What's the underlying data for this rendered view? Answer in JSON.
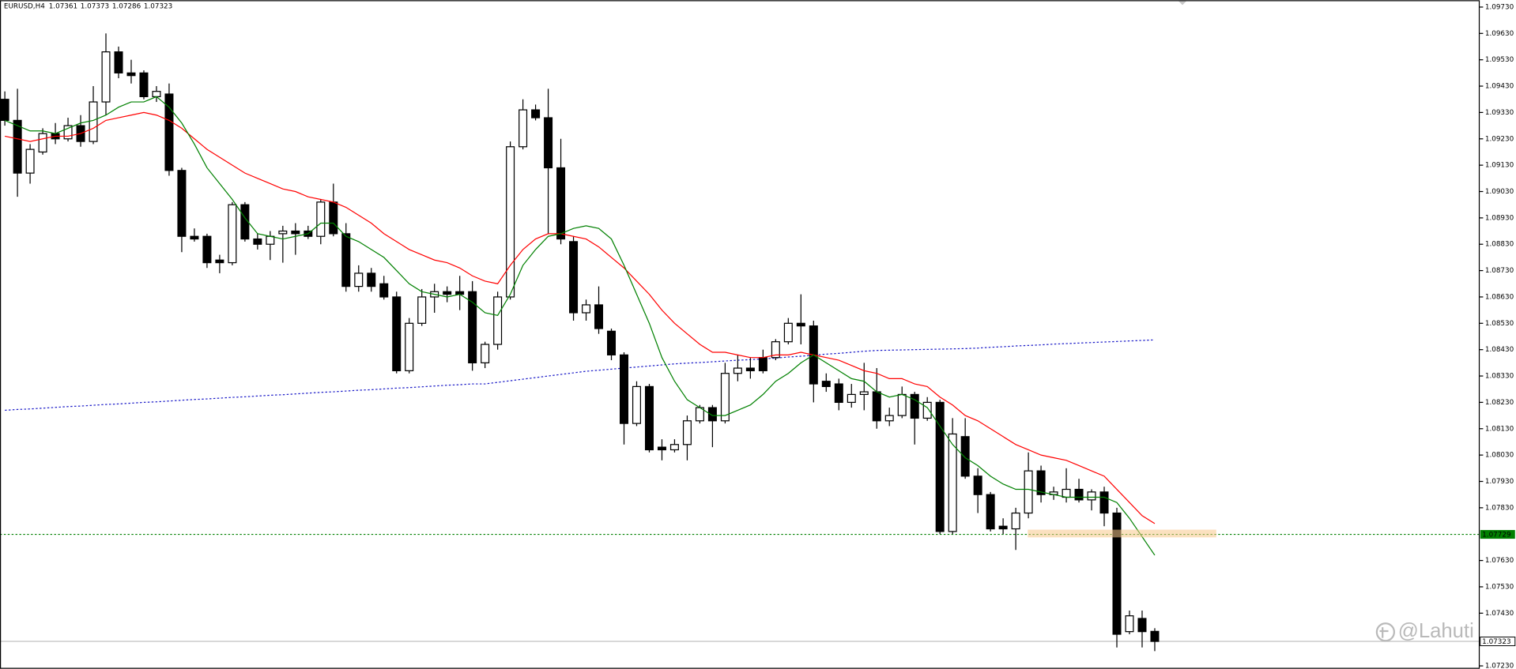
{
  "chart_data": {
    "type": "candlestick",
    "title": "EURUSD,H4",
    "open": [
      1.0938,
      1.093,
      1.091,
      1.0918,
      1.0925,
      1.0923,
      1.0928,
      1.0922,
      1.0937,
      1.0956,
      1.0948,
      1.0948,
      1.0939,
      1.094,
      1.0911,
      1.0886,
      1.0886,
      1.0877,
      1.0876,
      1.0898,
      1.0885,
      1.0883,
      1.0887,
      1.0888,
      1.0888,
      1.0886,
      1.0899,
      1.0887,
      1.0867,
      1.0872,
      1.0868,
      1.0863,
      1.0835,
      1.0853,
      1.0863,
      1.0865,
      1.0865,
      1.0865,
      1.0838,
      1.0845,
      1.0863,
      1.092,
      1.0934,
      1.0931,
      1.0912,
      1.0884,
      1.0857,
      1.086,
      1.085,
      1.0841,
      1.0815,
      1.0829,
      1.0806,
      1.0805,
      1.0807,
      1.0816,
      1.0821,
      1.0816,
      1.0834,
      1.0836,
      1.084,
      1.084,
      1.0846,
      1.0853,
      1.0852,
      1.0831,
      1.083,
      1.0823,
      1.0826,
      1.0827,
      1.0816,
      1.0818,
      1.0826,
      1.0817,
      1.0823,
      1.0774,
      1.081,
      1.0795,
      1.0788,
      1.0776,
      1.0775,
      1.0781,
      1.0797,
      1.0788,
      1.0787,
      1.079,
      1.0786,
      1.0789,
      1.0781,
      1.0736,
      1.0741,
      1.07361
    ],
    "high": [
      1.0941,
      1.0942,
      1.0921,
      1.0927,
      1.0929,
      1.0931,
      1.0932,
      1.0943,
      1.0963,
      1.0958,
      1.0953,
      1.0949,
      1.0943,
      1.0944,
      1.0912,
      1.0889,
      1.0887,
      1.0879,
      1.0899,
      1.0899,
      1.0887,
      1.0888,
      1.089,
      1.0891,
      1.089,
      1.09,
      1.0906,
      1.0891,
      1.0875,
      1.0874,
      1.0871,
      1.0865,
      1.0855,
      1.0866,
      1.0868,
      1.0867,
      1.0871,
      1.0869,
      1.0846,
      1.0865,
      1.0922,
      1.0938,
      1.0936,
      1.0942,
      1.0923,
      1.0886,
      1.0862,
      1.0867,
      1.0851,
      1.0842,
      1.0831,
      1.083,
      1.0809,
      1.0809,
      1.0818,
      1.0822,
      1.0822,
      1.0838,
      1.0841,
      1.084,
      1.0843,
      1.0847,
      1.0855,
      1.0864,
      1.0854,
      1.0834,
      1.0832,
      1.083,
      1.0838,
      1.0836,
      1.0821,
      1.0829,
      1.0827,
      1.0825,
      1.0824,
      1.0817,
      1.0817,
      1.0798,
      1.0789,
      1.0779,
      1.0783,
      1.0804,
      1.0799,
      1.0791,
      1.0798,
      1.0794,
      1.079,
      1.0791,
      1.0783,
      1.0744,
      1.0744,
      1.07373
    ],
    "low": [
      1.0928,
      1.0901,
      1.0906,
      1.0917,
      1.0921,
      1.0922,
      1.092,
      1.0921,
      1.0932,
      1.0946,
      1.0944,
      1.0938,
      1.0937,
      1.0909,
      1.088,
      1.0884,
      1.0874,
      1.0872,
      1.0875,
      1.0884,
      1.0881,
      1.0877,
      1.0876,
      1.0879,
      1.0885,
      1.0883,
      1.0886,
      1.0865,
      1.0865,
      1.0865,
      1.0862,
      1.0834,
      1.0834,
      1.0852,
      1.0857,
      1.0861,
      1.0858,
      1.0835,
      1.0836,
      1.0843,
      1.0862,
      1.0919,
      1.093,
      1.0887,
      1.0883,
      1.0854,
      1.0854,
      1.0849,
      1.0839,
      1.0807,
      1.0814,
      1.0804,
      1.0801,
      1.0804,
      1.0801,
      1.0815,
      1.0806,
      1.0815,
      1.0831,
      1.0832,
      1.0834,
      1.0839,
      1.0845,
      1.0845,
      1.0823,
      1.0827,
      1.082,
      1.0821,
      1.082,
      1.0813,
      1.0814,
      1.0817,
      1.0807,
      1.0816,
      1.0773,
      1.0773,
      1.0794,
      1.0781,
      1.0774,
      1.0773,
      1.0767,
      1.0779,
      1.0785,
      1.0786,
      1.0785,
      1.0785,
      1.0782,
      1.0776,
      1.073,
      1.0735,
      1.073,
      1.07286
    ],
    "close": [
      1.093,
      1.091,
      1.0919,
      1.0925,
      1.0923,
      1.0928,
      1.0922,
      1.0937,
      1.0956,
      1.0948,
      1.0947,
      1.0939,
      1.0941,
      1.0911,
      1.0886,
      1.0885,
      1.0876,
      1.0876,
      1.0898,
      1.0885,
      1.0883,
      1.0886,
      1.0888,
      1.0887,
      1.0886,
      1.0899,
      1.0887,
      1.0867,
      1.0872,
      1.0867,
      1.0863,
      1.0835,
      1.0853,
      1.0863,
      1.0865,
      1.0864,
      1.0864,
      1.0838,
      1.0845,
      1.0863,
      1.092,
      1.0934,
      1.0931,
      1.0912,
      1.0885,
      1.0857,
      1.086,
      1.0851,
      1.0841,
      1.0815,
      1.0829,
      1.0805,
      1.0805,
      1.0807,
      1.0816,
      1.0821,
      1.0816,
      1.0834,
      1.0836,
      1.0835,
      1.0835,
      1.0846,
      1.0853,
      1.0852,
      1.083,
      1.0829,
      1.0823,
      1.0826,
      1.0827,
      1.0816,
      1.0818,
      1.0826,
      1.0817,
      1.0823,
      1.0774,
      1.0811,
      1.0795,
      1.0788,
      1.0775,
      1.0775,
      1.0781,
      1.0797,
      1.0788,
      1.0789,
      1.079,
      1.0786,
      1.0789,
      1.0781,
      1.0735,
      1.0742,
      1.0736,
      1.07323
    ],
    "up_color": "#ffffff",
    "down_color": "#000000",
    "moving_averages": [
      {
        "color": "#1c1cc8",
        "style": "dotted",
        "values": [
          1.082,
          1.08203,
          1.08205,
          1.08208,
          1.08211,
          1.08214,
          1.08216,
          1.08219,
          1.08222,
          1.08224,
          1.08227,
          1.0823,
          1.08232,
          1.08235,
          1.08238,
          1.08241,
          1.08243,
          1.08246,
          1.08249,
          1.08251,
          1.08254,
          1.08257,
          1.08259,
          1.08262,
          1.08265,
          1.08268,
          1.0827,
          1.08273,
          1.08276,
          1.08278,
          1.08281,
          1.08284,
          1.08286,
          1.08289,
          1.08292,
          1.08295,
          1.08297,
          1.083,
          1.083,
          1.08306,
          1.08312,
          1.08318,
          1.08324,
          1.0833,
          1.08336,
          1.08342,
          1.08348,
          1.08352,
          1.08356,
          1.0836,
          1.08364,
          1.08368,
          1.08372,
          1.08376,
          1.08379,
          1.08381,
          1.08384,
          1.08387,
          1.0839,
          1.08392,
          1.08395,
          1.08398,
          1.08402,
          1.08405,
          1.08409,
          1.08413,
          1.08416,
          1.0842,
          1.08424,
          1.08427,
          1.08428,
          1.08429,
          1.0843,
          1.08431,
          1.08432,
          1.08433,
          1.08434,
          1.08436,
          1.08439,
          1.08441,
          1.08444,
          1.08446,
          1.08448,
          1.08451,
          1.08453,
          1.08455,
          1.08457,
          1.08459,
          1.08461,
          1.08463,
          1.08465,
          1.08467
        ]
      },
      {
        "color": "#ff0000",
        "style": "solid",
        "values": [
          1.0924,
          1.0923,
          1.0922,
          1.0923,
          1.0924,
          1.0924,
          1.0925,
          1.0927,
          1.093,
          1.0931,
          1.0932,
          1.0933,
          1.0932,
          1.093,
          1.0927,
          1.0923,
          1.0919,
          1.0916,
          1.0913,
          1.091,
          1.0908,
          1.0906,
          1.0904,
          1.0903,
          1.0901,
          1.09,
          1.0899,
          1.0897,
          1.0894,
          1.0891,
          1.0887,
          1.0884,
          1.0881,
          1.0879,
          1.0877,
          1.0876,
          1.0874,
          1.0871,
          1.0869,
          1.0868,
          1.0875,
          1.0881,
          1.0885,
          1.0887,
          1.0887,
          1.0886,
          1.0885,
          1.0882,
          1.0878,
          1.0874,
          1.0869,
          1.0864,
          1.0858,
          1.0853,
          1.0849,
          1.0845,
          1.0842,
          1.0842,
          1.0841,
          1.084,
          1.084,
          1.0841,
          1.0841,
          1.0842,
          1.0841,
          1.084,
          1.0839,
          1.0837,
          1.0835,
          1.0834,
          1.0832,
          1.0832,
          1.083,
          1.0829,
          1.0825,
          1.0822,
          1.0818,
          1.0816,
          1.0813,
          1.081,
          1.0807,
          1.0805,
          1.0803,
          1.0802,
          1.0801,
          1.0799,
          1.0797,
          1.0795,
          1.079,
          1.0785,
          1.078,
          1.0777
        ]
      },
      {
        "color": "#008000",
        "style": "solid",
        "values": [
          1.093,
          1.0928,
          1.0926,
          1.0926,
          1.0925,
          1.0927,
          1.0929,
          1.093,
          1.0932,
          1.0935,
          1.0937,
          1.0937,
          1.0939,
          1.0935,
          1.0929,
          1.0921,
          1.0912,
          1.0906,
          1.09,
          1.0893,
          1.0887,
          1.0886,
          1.0885,
          1.0886,
          1.0887,
          1.0891,
          1.0891,
          1.0886,
          1.0884,
          1.0881,
          1.0878,
          1.0873,
          1.0868,
          1.0865,
          1.0864,
          1.0863,
          1.0864,
          1.0861,
          1.0857,
          1.0856,
          1.0864,
          1.0875,
          1.0881,
          1.0886,
          1.0887,
          1.0889,
          1.089,
          1.0889,
          1.0885,
          1.0875,
          1.0864,
          1.0853,
          1.084,
          1.0831,
          1.0824,
          1.0821,
          1.0818,
          1.0818,
          1.082,
          1.0822,
          1.0826,
          1.0831,
          1.0834,
          1.0838,
          1.0841,
          1.0838,
          1.0835,
          1.0832,
          1.0831,
          1.0827,
          1.0825,
          1.0826,
          1.0824,
          1.0821,
          1.0814,
          1.0807,
          1.0802,
          1.0799,
          1.0795,
          1.0792,
          1.079,
          1.079,
          1.0789,
          1.0788,
          1.0787,
          1.0787,
          1.0787,
          1.0787,
          1.0785,
          1.0779,
          1.0772,
          1.0765
        ]
      }
    ],
    "levels": [
      {
        "value": 1.07729,
        "color": "#008000",
        "style": "dotted"
      }
    ],
    "bid_line_color": "#c0c0c0",
    "ylim": [
      1.07219,
      1.09756
    ],
    "yticks": [
      {
        "value": 1.0723,
        "label": "1.07230"
      },
      {
        "value": 1.0743,
        "label": "1.07430"
      },
      {
        "value": 1.0753,
        "label": "1.07530"
      },
      {
        "value": 1.0763,
        "label": "1.07630"
      },
      {
        "value": 1.0783,
        "label": "1.07830"
      },
      {
        "value": 1.0793,
        "label": "1.07930"
      },
      {
        "value": 1.0803,
        "label": "1.08030"
      },
      {
        "value": 1.0813,
        "label": "1.08130"
      },
      {
        "value": 1.0823,
        "label": "1.08230"
      },
      {
        "value": 1.0833,
        "label": "1.08330"
      },
      {
        "value": 1.0843,
        "label": "1.08430"
      },
      {
        "value": 1.0853,
        "label": "1.08530"
      },
      {
        "value": 1.0863,
        "label": "1.08630"
      },
      {
        "value": 1.0873,
        "label": "1.08730"
      },
      {
        "value": 1.0883,
        "label": "1.08830"
      },
      {
        "value": 1.0893,
        "label": "1.08930"
      },
      {
        "value": 1.0903,
        "label": "1.09030"
      },
      {
        "value": 1.0913,
        "label": "1.09130"
      },
      {
        "value": 1.0923,
        "label": "1.09230"
      },
      {
        "value": 1.0933,
        "label": "1.09330"
      },
      {
        "value": 1.0943,
        "label": "1.09430"
      },
      {
        "value": 1.0953,
        "label": "1.09530"
      },
      {
        "value": 1.0963,
        "label": "1.09630"
      },
      {
        "value": 1.0973,
        "label": "1.09730"
      }
    ]
  },
  "watermark": "@Lahuti"
}
